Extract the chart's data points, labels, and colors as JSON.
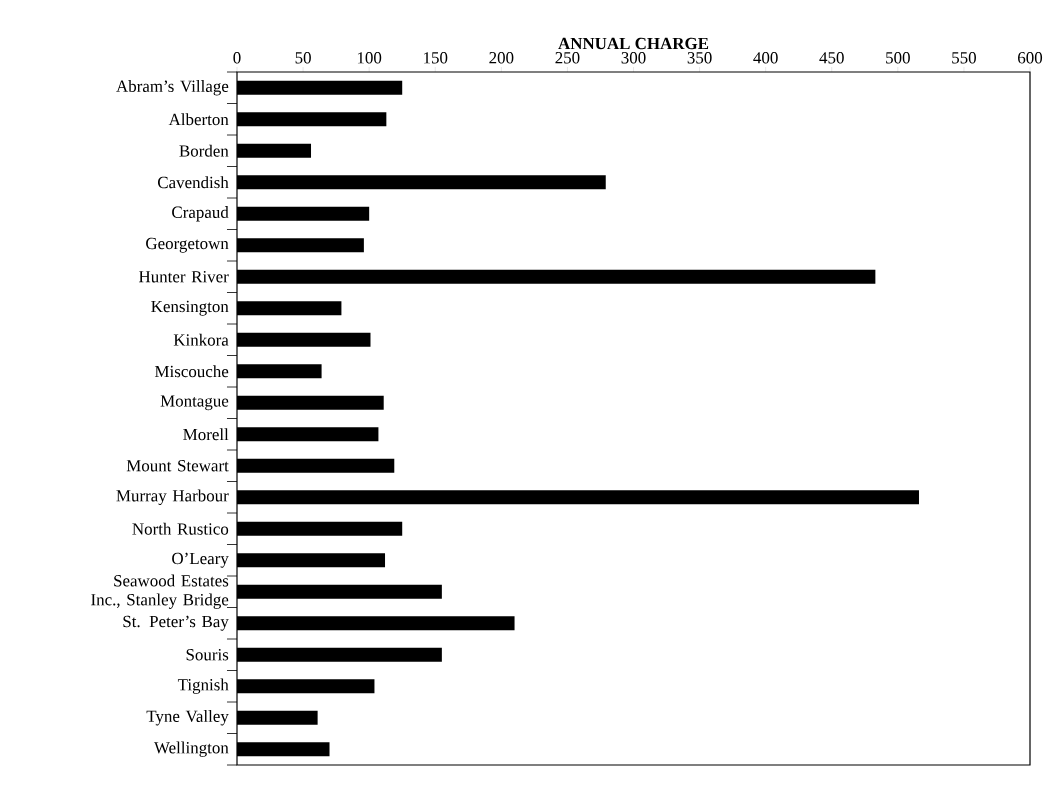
{
  "chart_data": {
    "type": "bar",
    "orientation": "horizontal",
    "xlabel": "ANNUAL CHARGE",
    "categories": [
      "Abram’s Village",
      "Alberton",
      "Borden",
      "Cavendish",
      "Crapaud",
      "Georgetown",
      "Hunter River",
      "Kensington",
      "Kinkora",
      "Miscouche",
      "Montague",
      "Morell",
      "Mount Stewart",
      "Murray Harbour",
      "North Rustico",
      "O’Leary",
      "Seawood Estates Inc., Stanley Bridge",
      "St. Peter’s Bay",
      "Souris",
      "Tignish",
      "Tyne Valley",
      "Wellington"
    ],
    "values": [
      125,
      113,
      56,
      279,
      100,
      96,
      483,
      79,
      101,
      64,
      111,
      107,
      119,
      516,
      125,
      112,
      155,
      210,
      155,
      104,
      61,
      70
    ],
    "color": "#000000",
    "xlim": [
      0,
      600
    ],
    "xticks": [
      0,
      50,
      100,
      150,
      200,
      250,
      300,
      350,
      400,
      450,
      500,
      550,
      600
    ]
  }
}
